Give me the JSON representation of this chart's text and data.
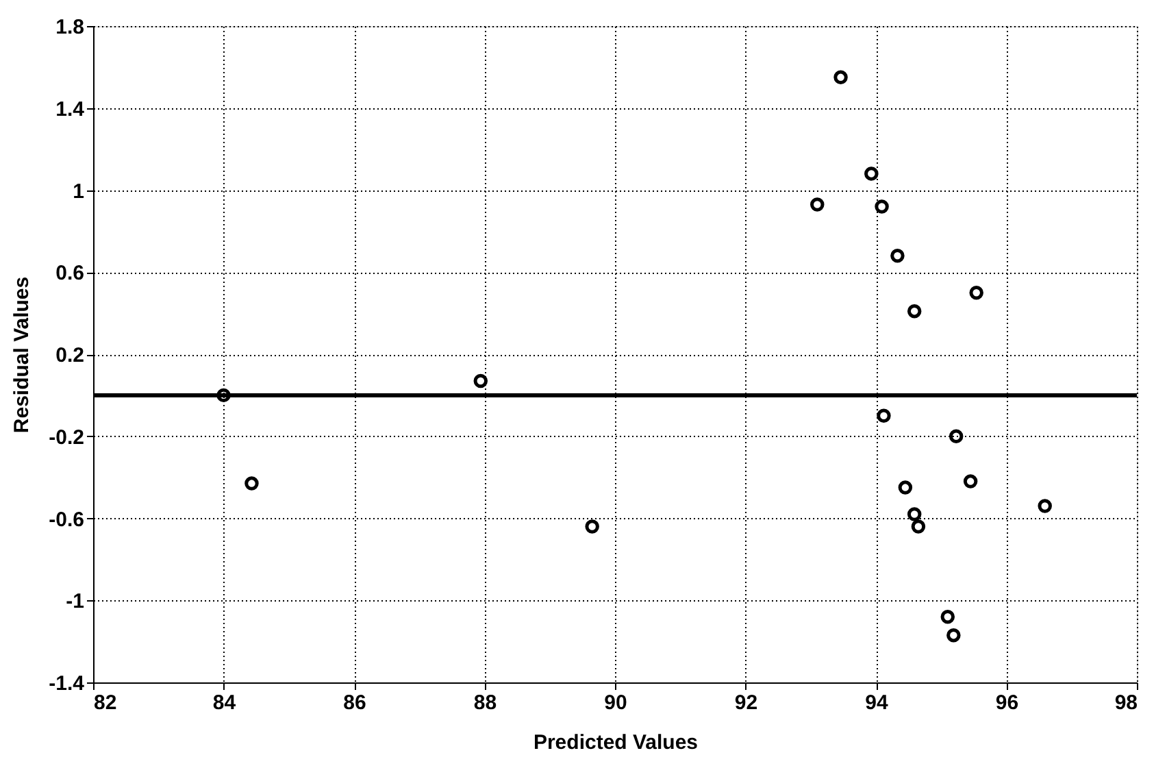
{
  "chart_data": {
    "type": "scatter",
    "xlabel": "Predicted Values",
    "ylabel": "Residual Values",
    "x": [
      84.0,
      84.43,
      87.94,
      89.65,
      93.46,
      93.93,
      93.1,
      94.09,
      94.33,
      95.54,
      94.59,
      94.12,
      95.23,
      94.45,
      95.45,
      96.59,
      94.59,
      94.65,
      95.1,
      95.19
    ],
    "values": [
      0.0,
      -0.43,
      0.07,
      -0.64,
      1.55,
      1.08,
      0.93,
      0.92,
      0.68,
      0.5,
      0.41,
      -0.1,
      -0.2,
      -0.45,
      -0.42,
      -0.54,
      -0.58,
      -0.64,
      -1.08,
      -1.17
    ],
    "color": "#000000",
    "marker": "circle",
    "xlim": [
      82,
      98
    ],
    "xticks": [
      82,
      84,
      86,
      88,
      90,
      92,
      94,
      96,
      98
    ],
    "ylim": [
      -1.4,
      1.8
    ],
    "yticks": [
      -1.4,
      -1,
      -0.6,
      -0.2,
      0.2,
      0.6,
      1,
      1.4,
      1.8
    ],
    "grid": true,
    "line_style": "dotted",
    "ref_lines": [
      {
        "axis": "y",
        "value": 0,
        "color": "#000000"
      }
    ]
  }
}
